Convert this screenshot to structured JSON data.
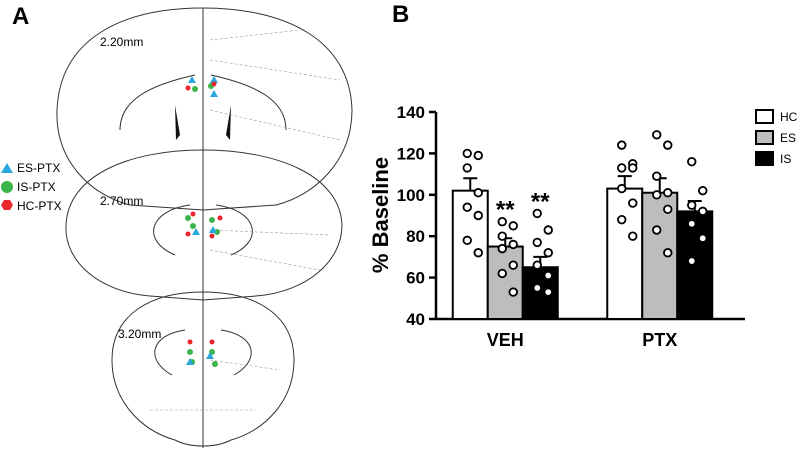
{
  "panel_a": {
    "label": "A",
    "sections": [
      "2.20mm",
      "2.70mm",
      "3.20mm"
    ],
    "legend": [
      {
        "name": "ES-PTX",
        "color": "#29a8e0"
      },
      {
        "name": "IS-PTX",
        "color": "#3cb44b"
      },
      {
        "name": "HC-PTX",
        "color": "#e8262b"
      }
    ]
  },
  "chart_data": {
    "type": "bar",
    "label": "B",
    "ylabel": "% Baseline",
    "categories": [
      "VEH",
      "PTX"
    ],
    "ylim": [
      40,
      140
    ],
    "yticks": [
      40,
      60,
      80,
      100,
      120,
      140
    ],
    "series": [
      {
        "name": "HC",
        "color": "#ffffff",
        "values": [
          102,
          103
        ],
        "errors": [
          6,
          6
        ],
        "points": [
          [
            120,
            119,
            113,
            101,
            94,
            90,
            78,
            72
          ],
          [
            124,
            115,
            113,
            113,
            103,
            96,
            88,
            80
          ]
        ]
      },
      {
        "name": "ES",
        "color": "#bdbdbd",
        "values": [
          75,
          101
        ],
        "errors": [
          4,
          7
        ],
        "annotations": [
          "**",
          null
        ],
        "points": [
          [
            87,
            85,
            80,
            76,
            74,
            66,
            62,
            53
          ],
          [
            129,
            124,
            109,
            101,
            100,
            93,
            83,
            72
          ]
        ]
      },
      {
        "name": "IS",
        "color": "#000000",
        "values": [
          65,
          92
        ],
        "errors": [
          5,
          5
        ],
        "annotations": [
          "**",
          null
        ],
        "points": [
          [
            91,
            83,
            77,
            72,
            66,
            61,
            55,
            53
          ],
          [
            116,
            102,
            95,
            92,
            86,
            79,
            68
          ]
        ]
      }
    ]
  }
}
